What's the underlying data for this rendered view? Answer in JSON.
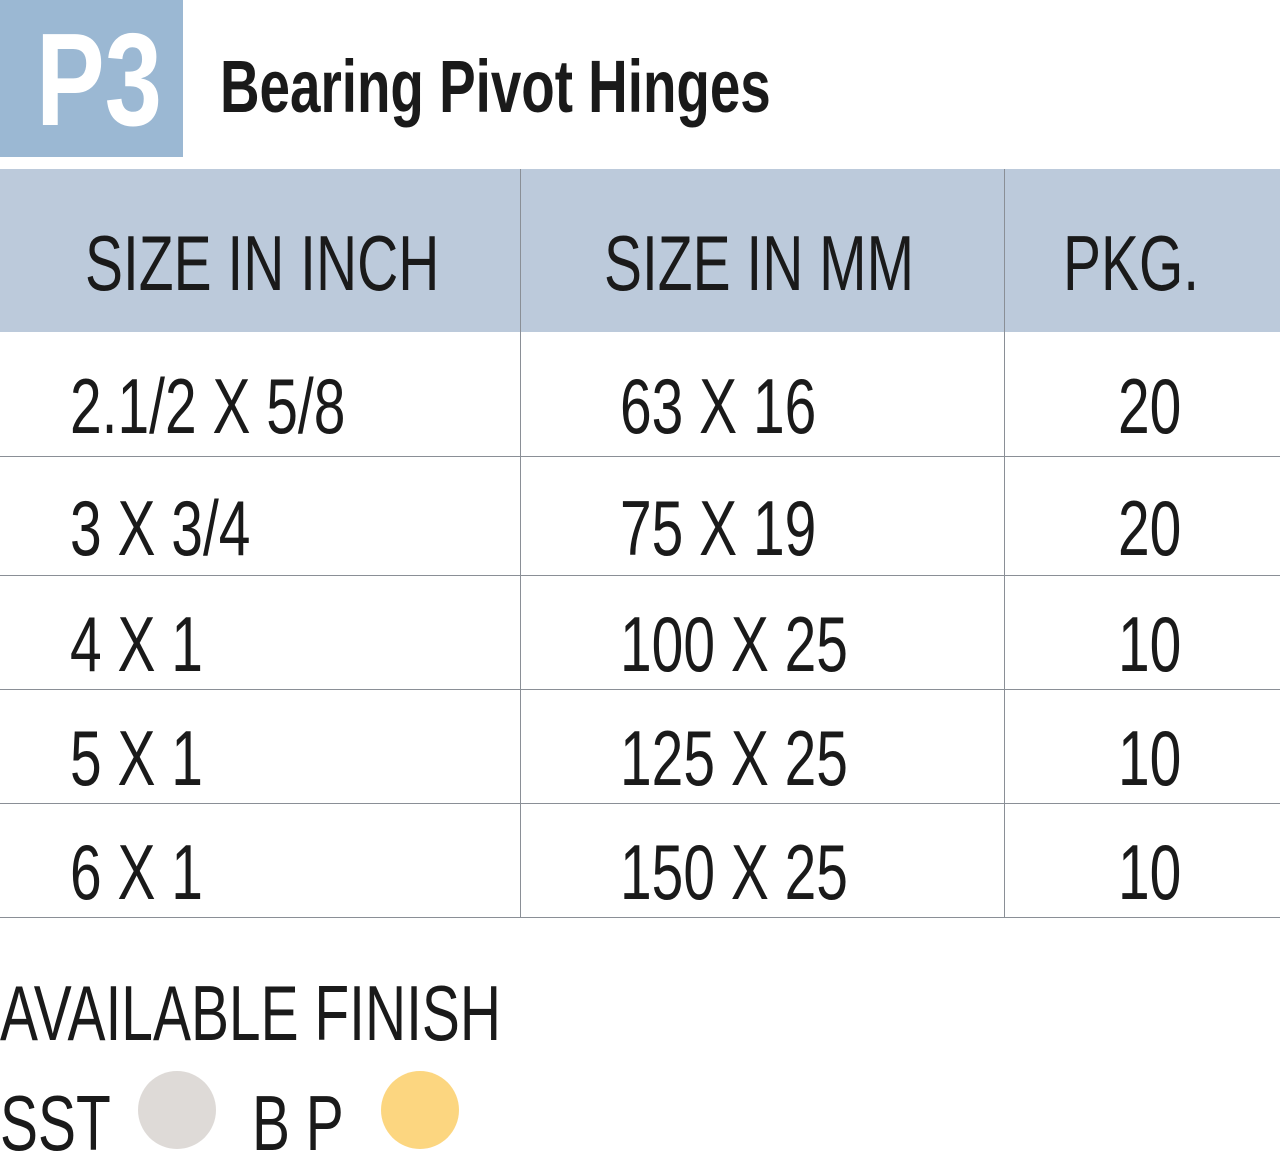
{
  "header": {
    "badge": "P3",
    "title": "Bearing Pivot Hinges"
  },
  "table": {
    "columns": [
      "SIZE IN INCH",
      "SIZE IN MM",
      "PKG."
    ],
    "rows": [
      [
        "2.1/2 X 5/8",
        "63 X 16",
        "20"
      ],
      [
        "3 X 3/4",
        "75 X 19",
        "20"
      ],
      [
        "4 X 1",
        "100 X 25",
        "10"
      ],
      [
        "5 X 1",
        "125 X 25",
        "10"
      ],
      [
        "6 X 1",
        "150 X 25",
        "10"
      ]
    ]
  },
  "finish": {
    "heading": "AVAILABLE FINISH",
    "options": [
      {
        "label": "SST",
        "color": "#dedad7"
      },
      {
        "label": "B P",
        "color": "#fcd680"
      }
    ]
  },
  "colors": {
    "badge": "#9bb8d3",
    "table_header": "#bccadb"
  }
}
